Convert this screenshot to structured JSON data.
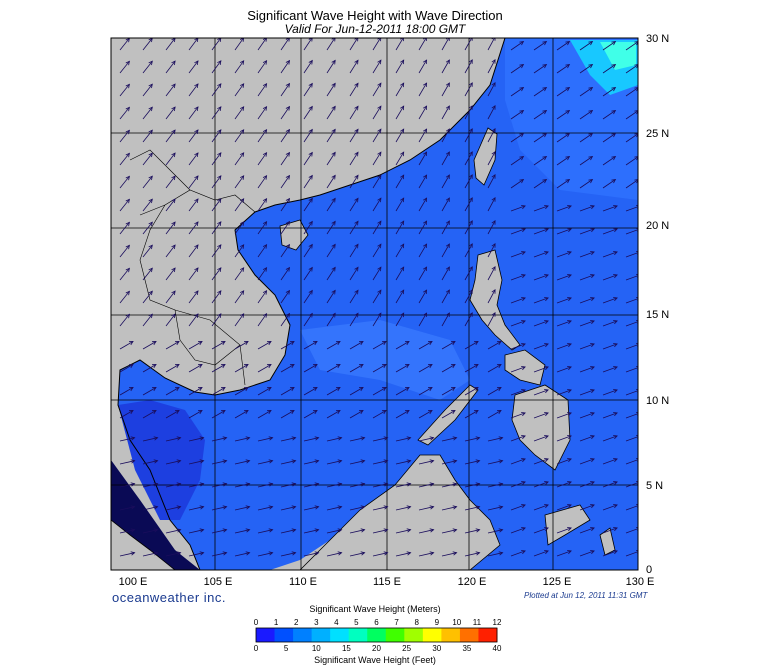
{
  "title": "Significant Wave Height with Wave Direction",
  "subtitle": "Valid For Jun-12-2011 18:00 GMT",
  "brand": "oceanweather inc.",
  "plotted": "Plotted at Jun 12, 2011 11:31 GMT",
  "map": {
    "lon_labels": [
      "100 E",
      "105 E",
      "110 E",
      "115 E",
      "120 E",
      "125 E",
      "130 E"
    ],
    "lat_labels": [
      "0",
      "5 N",
      "10 N",
      "15 N",
      "20 N",
      "25 N",
      "30 N"
    ],
    "land_color": "#c0c0c0",
    "ocean_color": "#1e5aff",
    "arrow_color": "#1a0d5c"
  },
  "colorbar": {
    "title_meters": "Significant Wave Height (Meters)",
    "title_feet": "Significant Wave Height (Feet)",
    "meter_ticks": [
      "0",
      "1",
      "2",
      "3",
      "4",
      "5",
      "6",
      "7",
      "8",
      "9",
      "10",
      "11",
      "12"
    ],
    "feet_ticks": [
      "0",
      "5",
      "10",
      "15",
      "20",
      "25",
      "30",
      "35",
      "40"
    ],
    "colors": [
      "#1a1aff",
      "#0050ff",
      "#0080ff",
      "#00b0ff",
      "#00e0ff",
      "#00ffc0",
      "#00ff60",
      "#40ff00",
      "#a0ff00",
      "#ffff00",
      "#ffc000",
      "#ff7000",
      "#ff2000"
    ]
  }
}
